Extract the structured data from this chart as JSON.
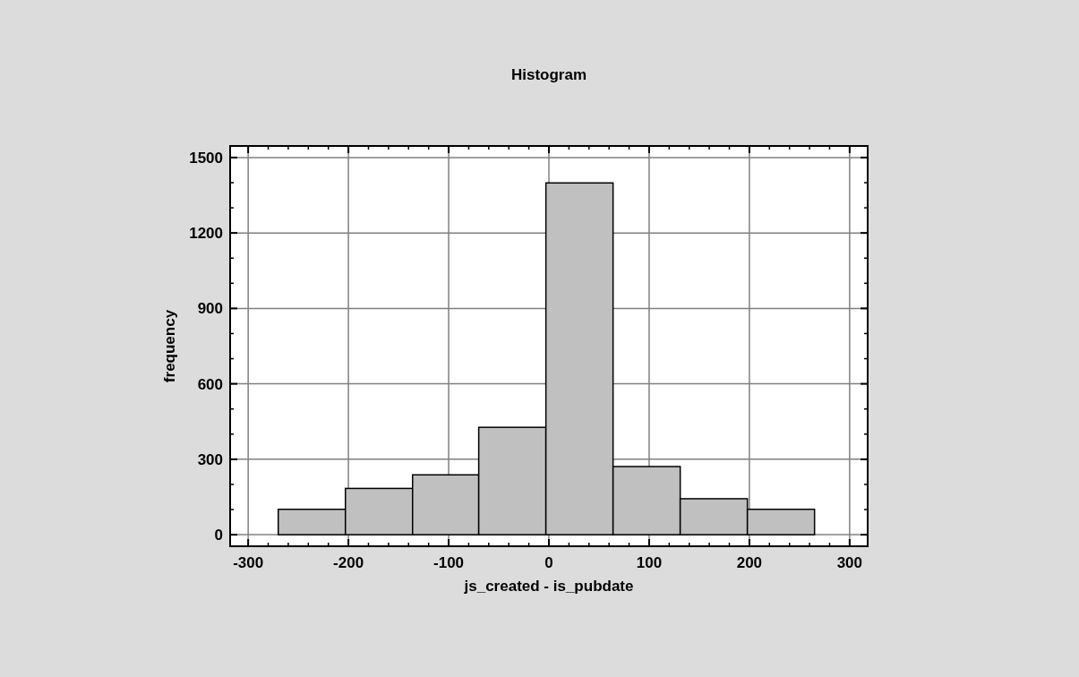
{
  "chart_data": {
    "type": "histogram",
    "title": "Histogram",
    "xlabel": "js_created - is_pubdate",
    "ylabel": "frequency",
    "bins": [
      -270,
      -203,
      -136,
      -70,
      -3,
      64,
      131,
      198,
      265
    ],
    "values": [
      101,
      184,
      238,
      427,
      1399,
      271,
      143,
      101
    ],
    "color": "#c0c0c0",
    "xlim": [
      -318,
      318
    ],
    "xticks": [
      -300,
      -200,
      -100,
      0,
      100,
      200,
      300
    ],
    "ylim": [
      -46,
      1546
    ],
    "yticks": [
      0,
      300,
      600,
      900,
      1200,
      1500
    ],
    "grid": true
  }
}
